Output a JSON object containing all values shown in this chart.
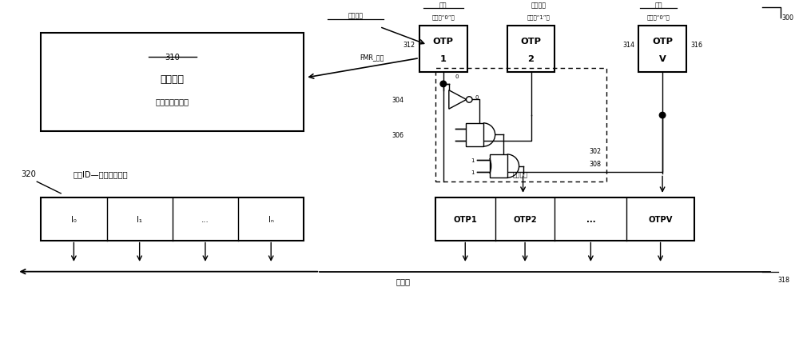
{
  "background_color": "#ffffff",
  "fig_width": 10.0,
  "fig_height": 4.35,
  "label_300": "300",
  "label_310": "310",
  "label_312": "312",
  "label_314": "314",
  "label_316": "316",
  "label_302": "302",
  "label_304": "304",
  "label_306": "306",
  "label_308": "308",
  "label_318": "318",
  "label_320": "320",
  "text_hardware_module": "硬件模块",
  "text_feature_enabled": "（特征被启用）",
  "text_enable_terminal": "启用端子",
  "text_fuse1": "熔断",
  "text_random_secret": "随机秘密",
  "text_fuse2": "熔断",
  "text_example0a": "（例如“0”）",
  "text_example1": "（例如“1”）",
  "text_example0b": "（例如“0”）",
  "text_fmr_enable": "FMR_启用",
  "text_safe_circuit": "安全电路",
  "text_chip_id": "芯片ID—唯一位标识符",
  "text_read_interface": "读接口",
  "text_otp1_cell": "OTP1",
  "text_otp2_cell": "OTP2",
  "text_dots_cell": "...",
  "text_otpv_cell": "OTPV",
  "text_i0": "I₀",
  "text_i1": "I₁",
  "text_idots": "...",
  "text_in": "Iₙ",
  "text_otp1_box_line1": "OTP",
  "text_otp1_box_line2": "1",
  "text_otp2_box_line1": "OTP",
  "text_otp2_box_line2": "2",
  "text_otpv_box_line1": "OTP",
  "text_otpv_box_line2": "V",
  "num_0": "0",
  "num_1": "1"
}
